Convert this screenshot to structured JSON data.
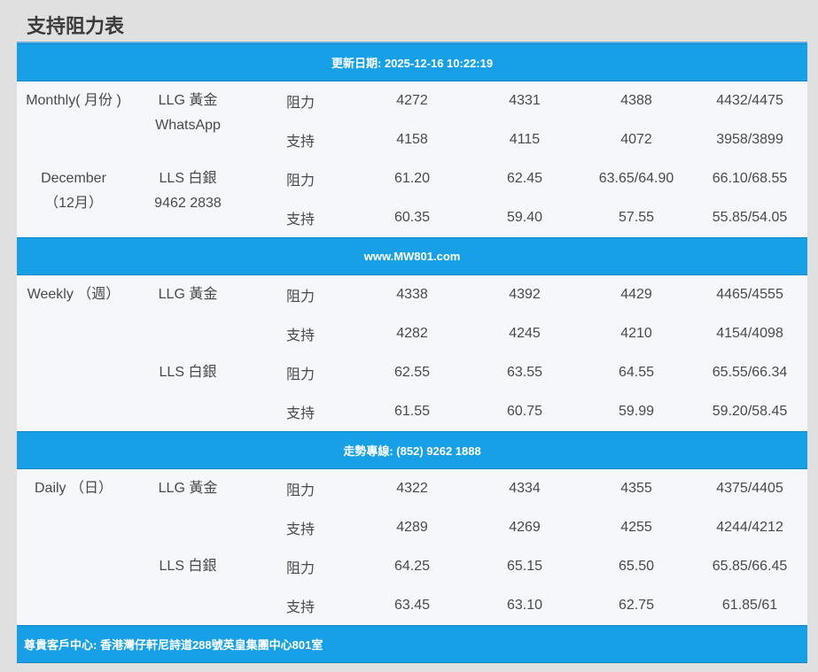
{
  "page_title": "支持阻力表",
  "bands": {
    "updated": "更新日期: 2025-12-16 10:22:19",
    "website": "www.MW801.com",
    "hotline": "走勢專線: (852) 9262 1888",
    "address": "尊貴客戶中心: 香港灣仔軒尼詩道288號英皇集團中心801室"
  },
  "monthly": {
    "period": "Monthly( 月份 )",
    "month": "December",
    "month_cn": "（12月）",
    "gold": "LLG 黃金",
    "whatsapp": "WhatsApp",
    "silver": "LLS 白銀",
    "phone": "9462 2838",
    "rows": [
      {
        "type": "阻力",
        "values": [
          "4272",
          "4331",
          "4388",
          "4432/4475"
        ]
      },
      {
        "type": "支持",
        "values": [
          "4158",
          "4115",
          "4072",
          "3958/3899"
        ]
      },
      {
        "type": "阻力",
        "values": [
          "61.20",
          "62.45",
          "63.65/64.90",
          "66.10/68.55"
        ]
      },
      {
        "type": "支持",
        "values": [
          "60.35",
          "59.40",
          "57.55",
          "55.85/54.05"
        ]
      }
    ]
  },
  "weekly": {
    "period": "Weekly （週）",
    "gold": "LLG 黃金",
    "silver": "LLS 白銀",
    "rows": [
      {
        "type": "阻力",
        "values": [
          "4338",
          "4392",
          "4429",
          "4465/4555"
        ]
      },
      {
        "type": "支持",
        "values": [
          "4282",
          "4245",
          "4210",
          "4154/4098"
        ]
      },
      {
        "type": "阻力",
        "values": [
          "62.55",
          "63.55",
          "64.55",
          "65.55/66.34"
        ]
      },
      {
        "type": "支持",
        "values": [
          "61.55",
          "60.75",
          "59.99",
          "59.20/58.45"
        ]
      }
    ]
  },
  "daily": {
    "period": "Daily （日）",
    "gold": "LLG 黃金",
    "silver": "LLS 白銀",
    "rows": [
      {
        "type": "阻力",
        "values": [
          "4322",
          "4334",
          "4355",
          "4375/4405"
        ]
      },
      {
        "type": "支持",
        "values": [
          "4289",
          "4269",
          "4255",
          "4244/4212"
        ]
      },
      {
        "type": "阻力",
        "values": [
          "64.25",
          "65.15",
          "65.50",
          "65.85/66.45"
        ]
      },
      {
        "type": "支持",
        "values": [
          "63.45",
          "63.10",
          "62.75",
          "61.85/61"
        ]
      }
    ]
  }
}
